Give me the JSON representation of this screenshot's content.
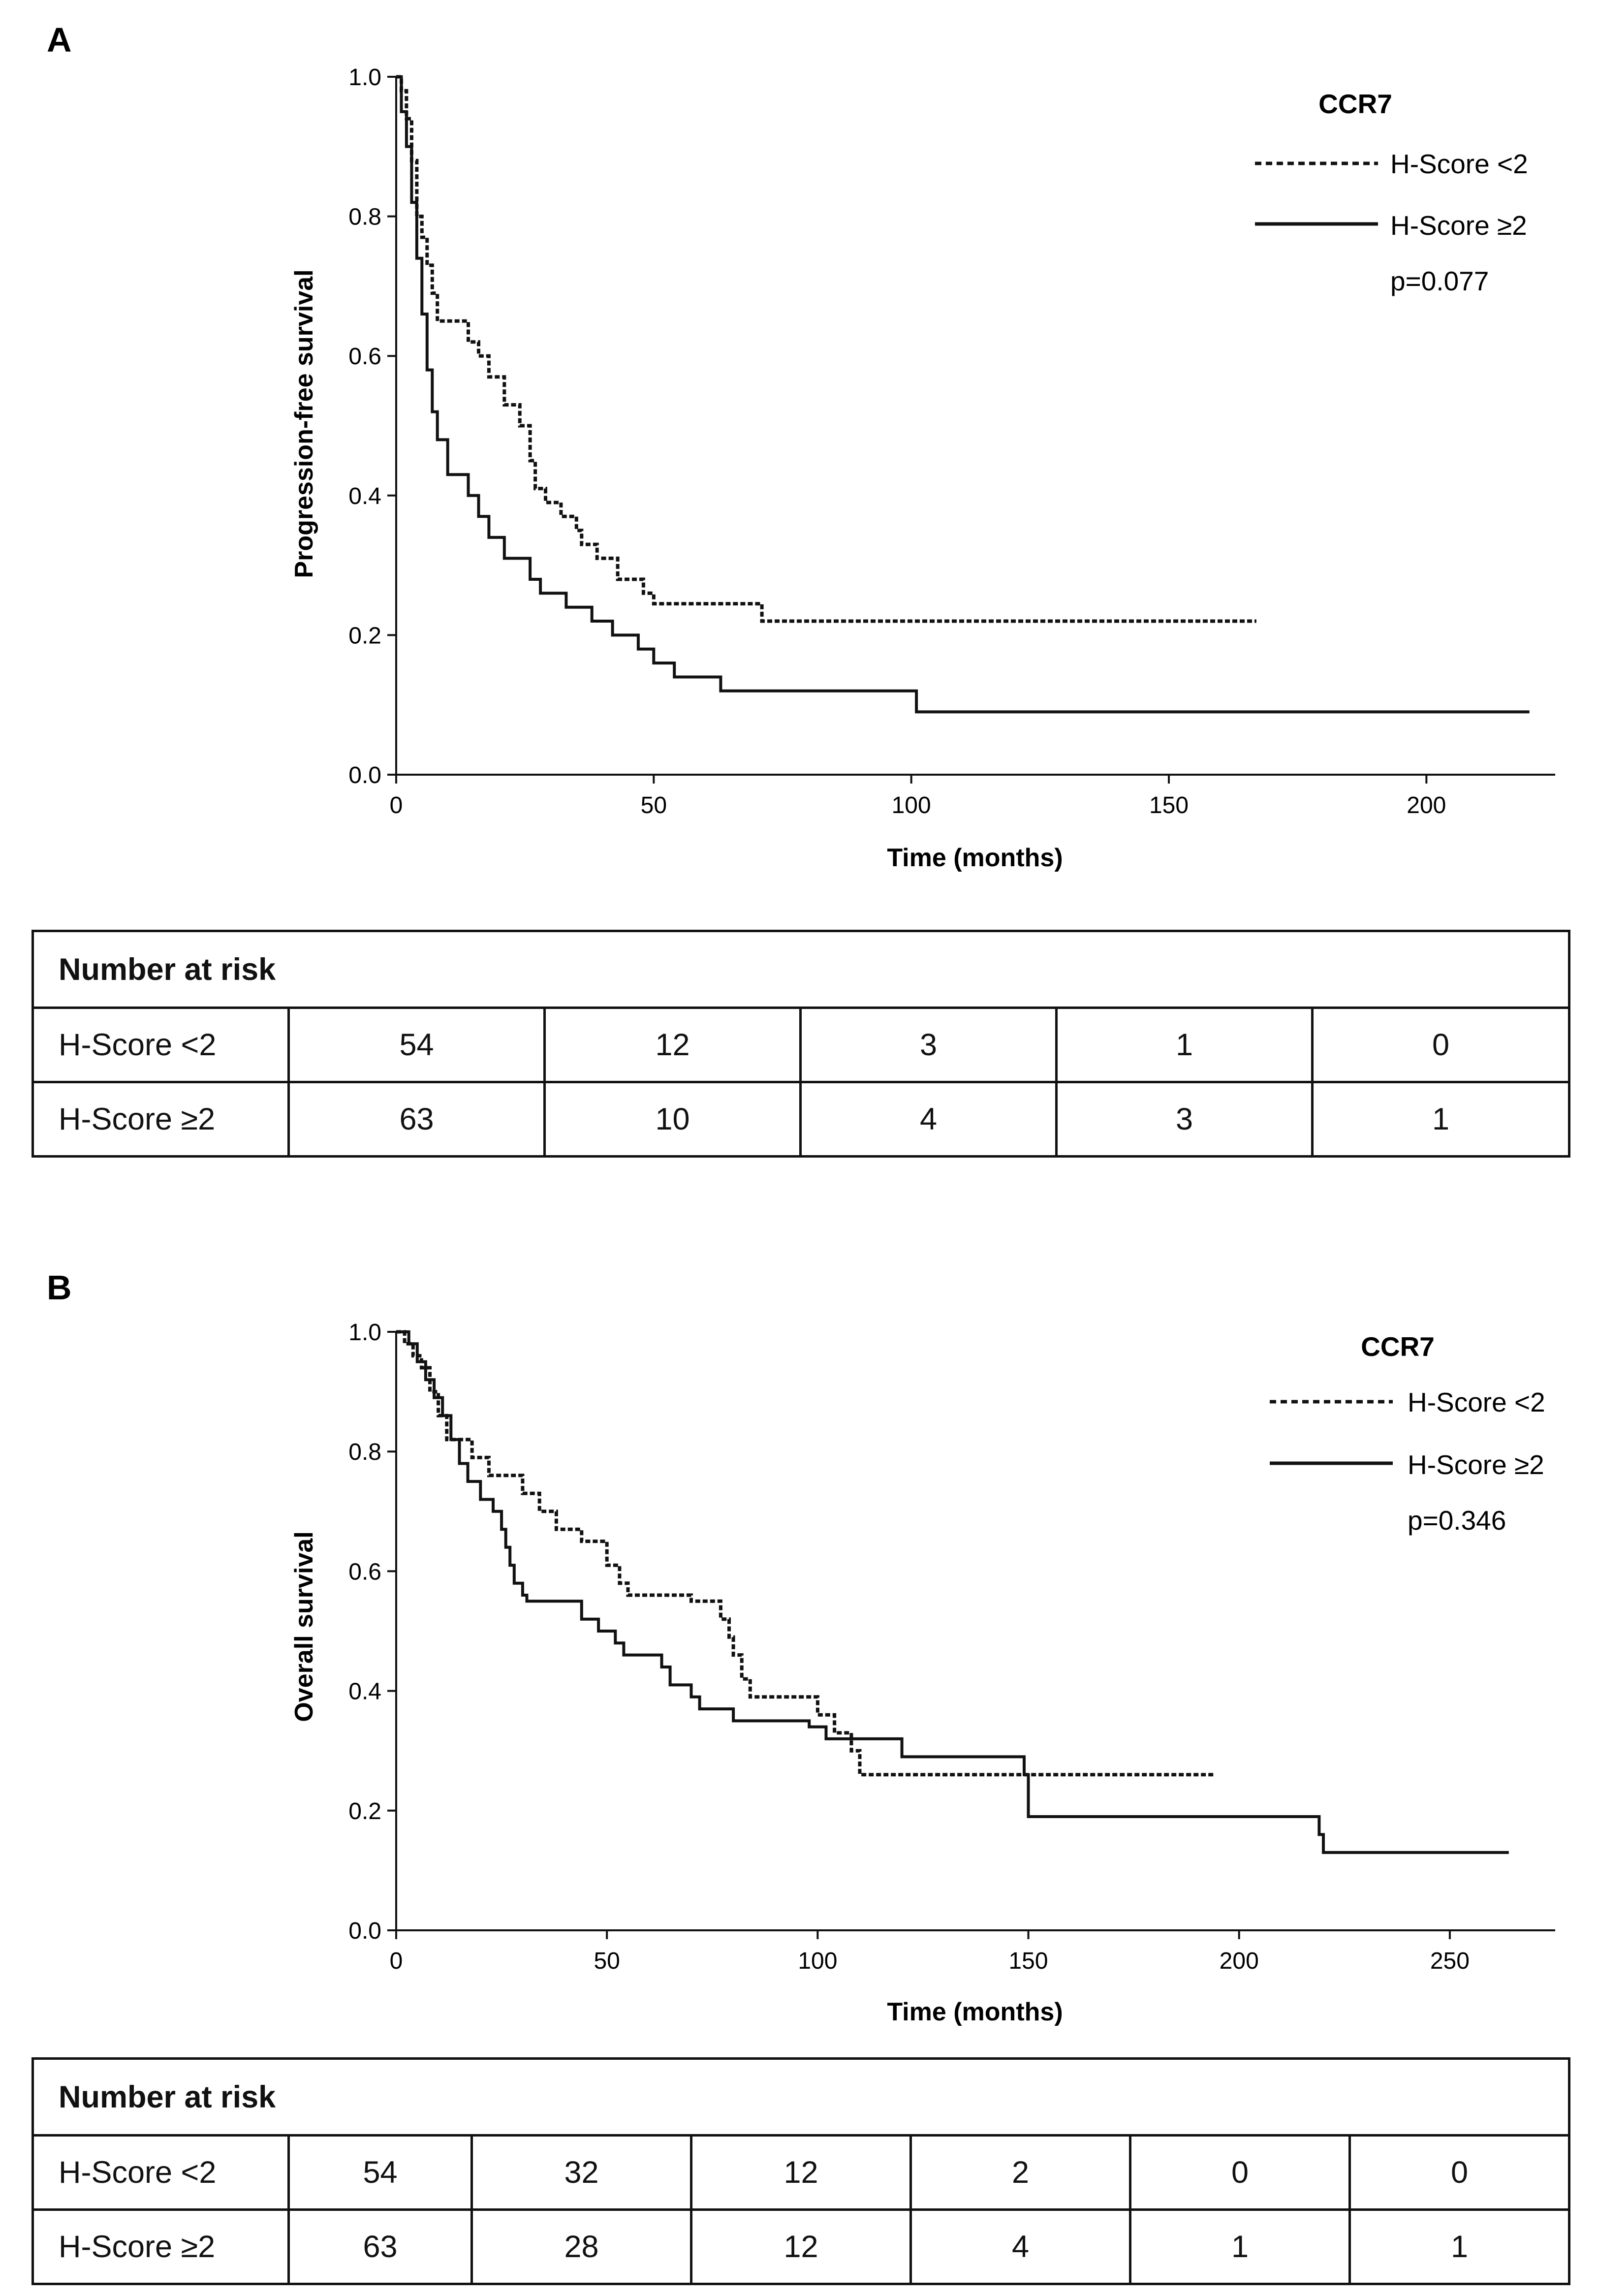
{
  "panels": [
    {
      "label": "A",
      "legend": {
        "title": "CCR7",
        "pvalue": "p=0.077"
      },
      "risk_table": {
        "header": "Number at risk",
        "rows": [
          {
            "group": "H-Score <2",
            "values": [
              "54",
              "12",
              "3",
              "1",
              "0"
            ]
          },
          {
            "group": "H-Score ≥2",
            "values": [
              "63",
              "10",
              "4",
              "3",
              "1"
            ]
          }
        ]
      }
    },
    {
      "label": "B",
      "legend": {
        "title": "CCR7",
        "pvalue": "p=0.346"
      },
      "risk_table": {
        "header": "Number at risk",
        "rows": [
          {
            "group": "H-Score <2",
            "values": [
              "54",
              "32",
              "12",
              "2",
              "0",
              "0"
            ]
          },
          {
            "group": "H-Score ≥2",
            "values": [
              "63",
              "28",
              "12",
              "4",
              "1",
              "1"
            ]
          }
        ]
      }
    }
  ],
  "chart_data": [
    {
      "type": "line",
      "title": "",
      "xlabel": "Time (months)",
      "ylabel": "Progression-free survival",
      "xlim": [
        0,
        225
      ],
      "ylim": [
        0,
        1
      ],
      "xticks": [
        0,
        50,
        100,
        150,
        200
      ],
      "yticks": [
        "0.0",
        "0.2",
        "0.4",
        "0.6",
        "0.8",
        "1.0"
      ],
      "series": [
        {
          "name": "H-Score <2",
          "style": "dashed",
          "points": [
            [
              0,
              1.0
            ],
            [
              1,
              0.98
            ],
            [
              2,
              0.94
            ],
            [
              3,
              0.88
            ],
            [
              4,
              0.8
            ],
            [
              5,
              0.77
            ],
            [
              6,
              0.73
            ],
            [
              7,
              0.69
            ],
            [
              8,
              0.65
            ],
            [
              14,
              0.62
            ],
            [
              16,
              0.6
            ],
            [
              18,
              0.57
            ],
            [
              21,
              0.53
            ],
            [
              24,
              0.5
            ],
            [
              26,
              0.45
            ],
            [
              27,
              0.41
            ],
            [
              29,
              0.39
            ],
            [
              32,
              0.37
            ],
            [
              35,
              0.35
            ],
            [
              36,
              0.33
            ],
            [
              39,
              0.31
            ],
            [
              43,
              0.28
            ],
            [
              48,
              0.26
            ],
            [
              50,
              0.245
            ],
            [
              71,
              0.22
            ],
            [
              167,
              0.22
            ]
          ]
        },
        {
          "name": "H-Score ≥2",
          "style": "solid",
          "points": [
            [
              0,
              1.0
            ],
            [
              1,
              0.95
            ],
            [
              2,
              0.9
            ],
            [
              3,
              0.82
            ],
            [
              4,
              0.74
            ],
            [
              5,
              0.66
            ],
            [
              6,
              0.58
            ],
            [
              7,
              0.52
            ],
            [
              8,
              0.48
            ],
            [
              10,
              0.43
            ],
            [
              14,
              0.4
            ],
            [
              16,
              0.37
            ],
            [
              18,
              0.34
            ],
            [
              21,
              0.31
            ],
            [
              26,
              0.28
            ],
            [
              28,
              0.26
            ],
            [
              33,
              0.24
            ],
            [
              38,
              0.22
            ],
            [
              42,
              0.2
            ],
            [
              47,
              0.18
            ],
            [
              50,
              0.16
            ],
            [
              54,
              0.14
            ],
            [
              63,
              0.12
            ],
            [
              101,
              0.09
            ],
            [
              220,
              0.09
            ]
          ]
        }
      ]
    },
    {
      "type": "line",
      "title": "",
      "xlabel": "Time (months)",
      "ylabel": "Overall survival",
      "xlim": [
        0,
        275
      ],
      "ylim": [
        0,
        1
      ],
      "xticks": [
        0,
        50,
        100,
        150,
        200,
        250
      ],
      "yticks": [
        "0.0",
        "0.2",
        "0.4",
        "0.6",
        "0.8",
        "1.0"
      ],
      "series": [
        {
          "name": "H-Score <2",
          "style": "dashed",
          "points": [
            [
              0,
              1.0
            ],
            [
              2,
              0.98
            ],
            [
              4,
              0.96
            ],
            [
              6,
              0.94
            ],
            [
              8,
              0.9
            ],
            [
              10,
              0.86
            ],
            [
              12,
              0.82
            ],
            [
              18,
              0.79
            ],
            [
              22,
              0.76
            ],
            [
              30,
              0.73
            ],
            [
              34,
              0.7
            ],
            [
              38,
              0.67
            ],
            [
              44,
              0.65
            ],
            [
              50,
              0.61
            ],
            [
              53,
              0.58
            ],
            [
              55,
              0.56
            ],
            [
              70,
              0.55
            ],
            [
              77,
              0.52
            ],
            [
              79,
              0.49
            ],
            [
              80,
              0.46
            ],
            [
              82,
              0.42
            ],
            [
              84,
              0.39
            ],
            [
              100,
              0.36
            ],
            [
              104,
              0.33
            ],
            [
              108,
              0.3
            ],
            [
              110,
              0.26
            ],
            [
              194,
              0.26
            ]
          ]
        },
        {
          "name": "H-Score ≥2",
          "style": "solid",
          "points": [
            [
              0,
              1.0
            ],
            [
              3,
              0.98
            ],
            [
              5,
              0.95
            ],
            [
              7,
              0.92
            ],
            [
              9,
              0.89
            ],
            [
              11,
              0.86
            ],
            [
              13,
              0.82
            ],
            [
              15,
              0.78
            ],
            [
              17,
              0.75
            ],
            [
              20,
              0.72
            ],
            [
              23,
              0.7
            ],
            [
              25,
              0.67
            ],
            [
              26,
              0.64
            ],
            [
              27,
              0.61
            ],
            [
              28,
              0.58
            ],
            [
              30,
              0.56
            ],
            [
              31,
              0.55
            ],
            [
              44,
              0.52
            ],
            [
              48,
              0.5
            ],
            [
              52,
              0.48
            ],
            [
              54,
              0.46
            ],
            [
              63,
              0.44
            ],
            [
              65,
              0.41
            ],
            [
              70,
              0.39
            ],
            [
              72,
              0.37
            ],
            [
              80,
              0.35
            ],
            [
              98,
              0.34
            ],
            [
              102,
              0.32
            ],
            [
              120,
              0.29
            ],
            [
              149,
              0.26
            ],
            [
              150,
              0.19
            ],
            [
              219,
              0.16
            ],
            [
              220,
              0.13
            ],
            [
              264,
              0.13
            ]
          ]
        }
      ]
    }
  ]
}
